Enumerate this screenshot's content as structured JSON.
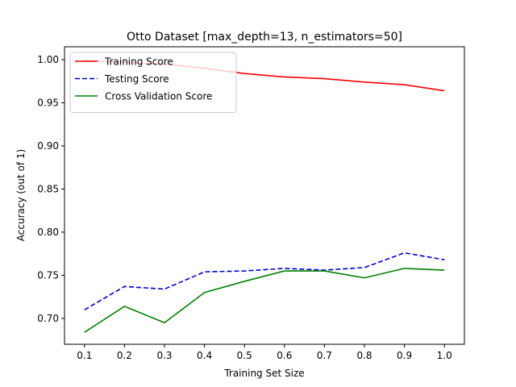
{
  "chart_data": {
    "type": "line",
    "title": "Otto Dataset [max_depth=13, n_estimators=50]",
    "xlabel": "Training Set Size",
    "ylabel": "Accuracy (out of 1)",
    "x": [
      0.1,
      0.2,
      0.3,
      0.4,
      0.5,
      0.6,
      0.7,
      0.8,
      0.9,
      1.0
    ],
    "xlim": [
      0.05,
      1.05
    ],
    "ylim": [
      0.67,
      1.015
    ],
    "xticks": [
      "0.1",
      "0.2",
      "0.3",
      "0.4",
      "0.5",
      "0.6",
      "0.7",
      "0.8",
      "0.9",
      "1.0"
    ],
    "yticks": [
      "0.70",
      "0.75",
      "0.80",
      "0.85",
      "0.90",
      "0.95",
      "1.00"
    ],
    "grid": false,
    "legend_position": "top-left",
    "series": [
      {
        "name": "Training Score",
        "color": "#ff0000",
        "style": "solid",
        "values": [
          0.999,
          0.997,
          0.995,
          0.99,
          0.984,
          0.98,
          0.978,
          0.974,
          0.971,
          0.964
        ]
      },
      {
        "name": "Testing Score",
        "color": "#0000cc",
        "style": "dashed",
        "values": [
          0.71,
          0.737,
          0.734,
          0.754,
          0.755,
          0.758,
          0.756,
          0.759,
          0.776,
          0.768
        ]
      },
      {
        "name": "Cross Validation Score",
        "color": "#008000",
        "style": "solid",
        "values": [
          0.684,
          0.714,
          0.695,
          0.73,
          0.743,
          0.755,
          0.755,
          0.747,
          0.758,
          0.756
        ]
      }
    ]
  }
}
